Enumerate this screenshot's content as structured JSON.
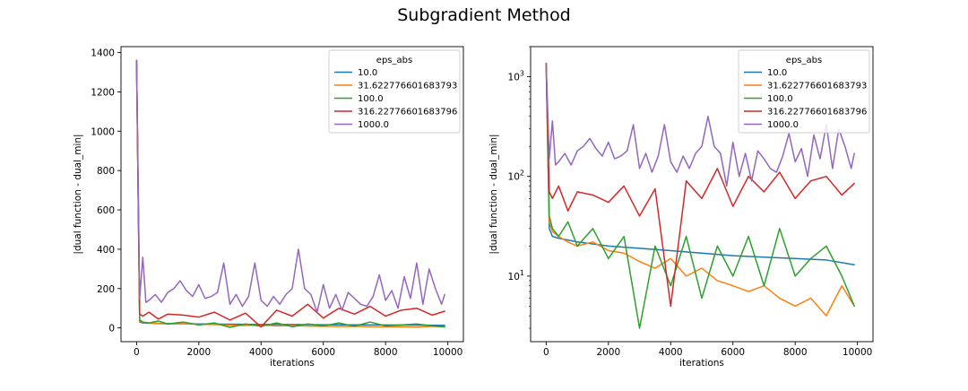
{
  "figure": {
    "suptitle": "Subgradient Method"
  },
  "colors": {
    "series": [
      "#1f77b4",
      "#ff7f0e",
      "#2ca02c",
      "#d62728",
      "#9467bd"
    ]
  },
  "chart_data": [
    {
      "type": "line",
      "title": "",
      "xlabel": "iterations",
      "ylabel": "|dual function - dual_min|",
      "xlim": [
        -500,
        10500
      ],
      "ylim": [
        -70,
        1430
      ],
      "yscale": "linear",
      "xticks": [
        0,
        2000,
        4000,
        6000,
        8000,
        10000
      ],
      "yticks": [
        0,
        200,
        400,
        600,
        800,
        1000,
        1200,
        1400
      ],
      "grid": false,
      "legend": {
        "title": "eps_abs",
        "location": "upper right"
      },
      "series": [
        {
          "name": "10.0",
          "x": [
            0,
            100,
            200,
            400,
            700,
            1000,
            1500,
            2000,
            3000,
            4000,
            5000,
            6000,
            7000,
            8000,
            9000,
            9900
          ],
          "y": [
            1360,
            30,
            25,
            24,
            23,
            22,
            21,
            20,
            19,
            18,
            17,
            16,
            15.5,
            15,
            14.5,
            13
          ]
        },
        {
          "name": "31.622776601683793",
          "x": [
            0,
            100,
            200,
            400,
            700,
            1000,
            1500,
            2000,
            2500,
            3000,
            3500,
            4000,
            4500,
            5000,
            5500,
            6000,
            6500,
            7000,
            7500,
            8000,
            8500,
            9000,
            9500,
            9900
          ],
          "y": [
            1360,
            35,
            28,
            25,
            22,
            20,
            22,
            18,
            17,
            14,
            12,
            15,
            10,
            12,
            9,
            8,
            7,
            8,
            6,
            5,
            6,
            4,
            8,
            5
          ]
        },
        {
          "name": "100.0",
          "x": [
            0,
            100,
            200,
            400,
            700,
            1000,
            1500,
            2000,
            2500,
            3000,
            3500,
            4000,
            4500,
            5000,
            5500,
            6000,
            6500,
            7000,
            7500,
            8000,
            8500,
            9000,
            9500,
            9900
          ],
          "y": [
            1360,
            40,
            30,
            25,
            35,
            20,
            30,
            15,
            25,
            3,
            20,
            8,
            25,
            6,
            20,
            10,
            25,
            8,
            30,
            10,
            15,
            20,
            10,
            5
          ]
        },
        {
          "name": "316.22776601683796",
          "x": [
            0,
            100,
            200,
            400,
            700,
            1000,
            1500,
            2000,
            2500,
            3000,
            3500,
            4000,
            4500,
            5000,
            5500,
            6000,
            6500,
            7000,
            7500,
            8000,
            8500,
            9000,
            9500,
            9900
          ],
          "y": [
            1360,
            70,
            60,
            80,
            45,
            70,
            65,
            55,
            80,
            40,
            75,
            5,
            90,
            60,
            120,
            50,
            100,
            70,
            110,
            60,
            90,
            100,
            65,
            85
          ]
        },
        {
          "name": "1000.0",
          "x": [
            0,
            100,
            200,
            300,
            400,
            600,
            800,
            1000,
            1200,
            1400,
            1600,
            1800,
            2000,
            2200,
            2400,
            2600,
            2800,
            3000,
            3200,
            3400,
            3600,
            3800,
            4000,
            4200,
            4400,
            4600,
            4800,
            5000,
            5200,
            5400,
            5600,
            5800,
            6000,
            6200,
            6400,
            6600,
            6800,
            7000,
            7200,
            7400,
            7600,
            7800,
            8000,
            8200,
            8400,
            8600,
            8800,
            9000,
            9200,
            9400,
            9600,
            9800,
            9900
          ],
          "y": [
            1360,
            150,
            360,
            130,
            140,
            170,
            130,
            180,
            200,
            240,
            190,
            160,
            220,
            150,
            160,
            180,
            330,
            120,
            170,
            110,
            160,
            330,
            140,
            110,
            160,
            120,
            170,
            200,
            400,
            200,
            170,
            80,
            220,
            100,
            170,
            90,
            180,
            150,
            120,
            110,
            160,
            270,
            140,
            190,
            100,
            260,
            150,
            330,
            120,
            300,
            200,
            120,
            170
          ]
        }
      ]
    },
    {
      "type": "line",
      "title": "",
      "xlabel": "iterations",
      "ylabel": "|dual function - dual_min|",
      "xlim": [
        -500,
        10500
      ],
      "ylim": [
        2.2,
        2000
      ],
      "yscale": "log",
      "xticks": [
        0,
        2000,
        4000,
        6000,
        8000,
        10000
      ],
      "yticks": [
        10,
        100,
        1000
      ],
      "ytick_labels": [
        {
          "base": "10",
          "exp": "1"
        },
        {
          "base": "10",
          "exp": "2"
        },
        {
          "base": "10",
          "exp": "3"
        }
      ],
      "grid": false,
      "legend": {
        "title": "eps_abs",
        "location": "upper right"
      },
      "series": [
        {
          "name": "10.0",
          "x": [
            0,
            100,
            200,
            400,
            700,
            1000,
            1500,
            2000,
            3000,
            4000,
            5000,
            6000,
            7000,
            8000,
            9000,
            9900
          ],
          "y": [
            1360,
            30,
            25,
            24,
            23,
            22,
            21,
            20,
            19,
            18,
            17,
            16,
            15.5,
            15,
            14.5,
            13
          ]
        },
        {
          "name": "31.622776601683793",
          "x": [
            0,
            100,
            200,
            400,
            700,
            1000,
            1500,
            2000,
            2500,
            3000,
            3500,
            4000,
            4500,
            5000,
            5500,
            6000,
            6500,
            7000,
            7500,
            8000,
            8500,
            9000,
            9500,
            9900
          ],
          "y": [
            1360,
            35,
            28,
            25,
            22,
            20,
            22,
            18,
            17,
            14,
            12,
            15,
            10,
            12,
            9,
            8,
            7,
            8,
            6,
            5,
            6,
            4,
            8,
            5
          ]
        },
        {
          "name": "100.0",
          "x": [
            0,
            100,
            200,
            400,
            700,
            1000,
            1500,
            2000,
            2500,
            3000,
            3500,
            4000,
            4500,
            5000,
            5500,
            6000,
            6500,
            7000,
            7500,
            8000,
            8500,
            9000,
            9500,
            9900
          ],
          "y": [
            1360,
            40,
            30,
            25,
            35,
            20,
            30,
            15,
            25,
            3,
            20,
            8,
            25,
            6,
            20,
            10,
            25,
            8,
            30,
            10,
            15,
            20,
            10,
            5
          ]
        },
        {
          "name": "316.22776601683796",
          "x": [
            0,
            100,
            200,
            400,
            700,
            1000,
            1500,
            2000,
            2500,
            3000,
            3500,
            4000,
            4500,
            5000,
            5500,
            6000,
            6500,
            7000,
            7500,
            8000,
            8500,
            9000,
            9500,
            9900
          ],
          "y": [
            1360,
            70,
            60,
            80,
            45,
            70,
            65,
            55,
            80,
            40,
            75,
            5,
            90,
            60,
            120,
            50,
            100,
            70,
            110,
            60,
            90,
            100,
            65,
            85
          ]
        },
        {
          "name": "1000.0",
          "x": [
            0,
            100,
            200,
            300,
            400,
            600,
            800,
            1000,
            1200,
            1400,
            1600,
            1800,
            2000,
            2200,
            2400,
            2600,
            2800,
            3000,
            3200,
            3400,
            3600,
            3800,
            4000,
            4200,
            4400,
            4600,
            4800,
            5000,
            5200,
            5400,
            5600,
            5800,
            6000,
            6200,
            6400,
            6600,
            6800,
            7000,
            7200,
            7400,
            7600,
            7800,
            8000,
            8200,
            8400,
            8600,
            8800,
            9000,
            9200,
            9400,
            9600,
            9800,
            9900
          ],
          "y": [
            1360,
            150,
            360,
            130,
            140,
            170,
            130,
            180,
            200,
            240,
            190,
            160,
            220,
            150,
            160,
            180,
            330,
            120,
            170,
            110,
            160,
            330,
            140,
            110,
            160,
            120,
            170,
            200,
            400,
            200,
            170,
            80,
            220,
            100,
            170,
            90,
            180,
            150,
            120,
            110,
            160,
            270,
            140,
            190,
            100,
            260,
            150,
            330,
            120,
            300,
            200,
            120,
            170
          ]
        }
      ]
    }
  ]
}
